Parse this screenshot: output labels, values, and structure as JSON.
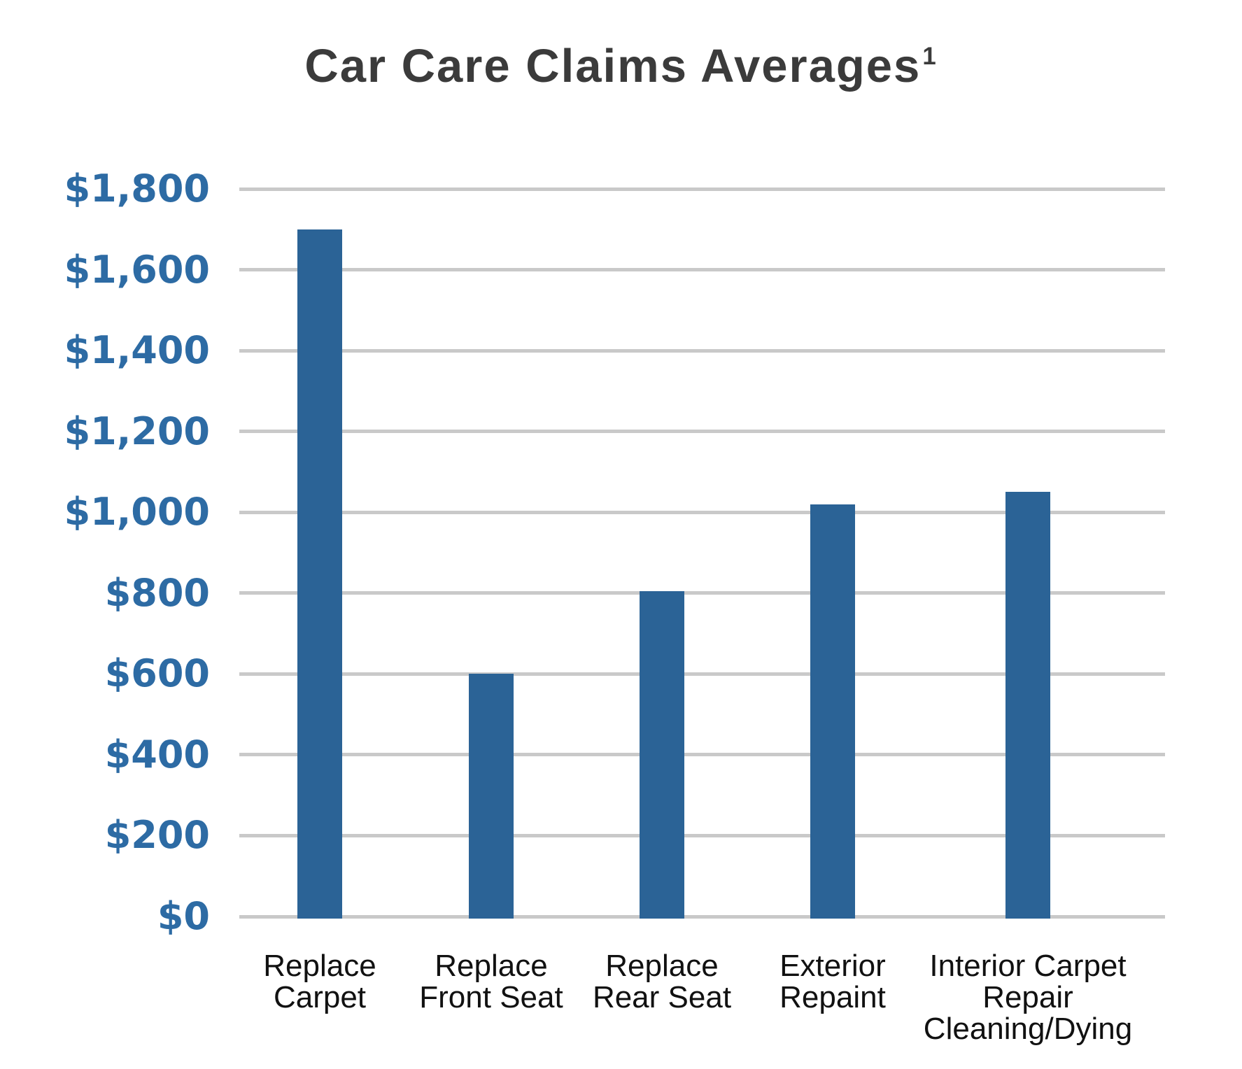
{
  "title": {
    "text": "Car Care Claims Averages",
    "superscript": "1"
  },
  "chart_data": {
    "type": "bar",
    "title": "Car Care Claims Averages¹",
    "categories": [
      "Replace\nCarpet",
      "Replace\nFront Seat",
      "Replace\nRear Seat",
      "Exterior\nRepaint",
      "Interior Carpet\nRepair\nCleaning/Dying"
    ],
    "values": [
      1700,
      600,
      805,
      1020,
      1050
    ],
    "xlabel": "",
    "ylabel": "",
    "ylim": [
      0,
      1800
    ],
    "ytick_step": 200,
    "ytick_labels_top_to_bottom": [
      "$1,800",
      "$1,600",
      "$1,400",
      "$1,200",
      "$1,000",
      "$800",
      "$600",
      "$400",
      "$200",
      "$0"
    ],
    "grid": "horizontal",
    "legend": "none",
    "colors": {
      "bar": "#2b6396",
      "ytick_label": "#2d6ba4",
      "gridline": "#c9c9c9",
      "title": "#3b3b3b",
      "category_label": "#111111"
    }
  }
}
